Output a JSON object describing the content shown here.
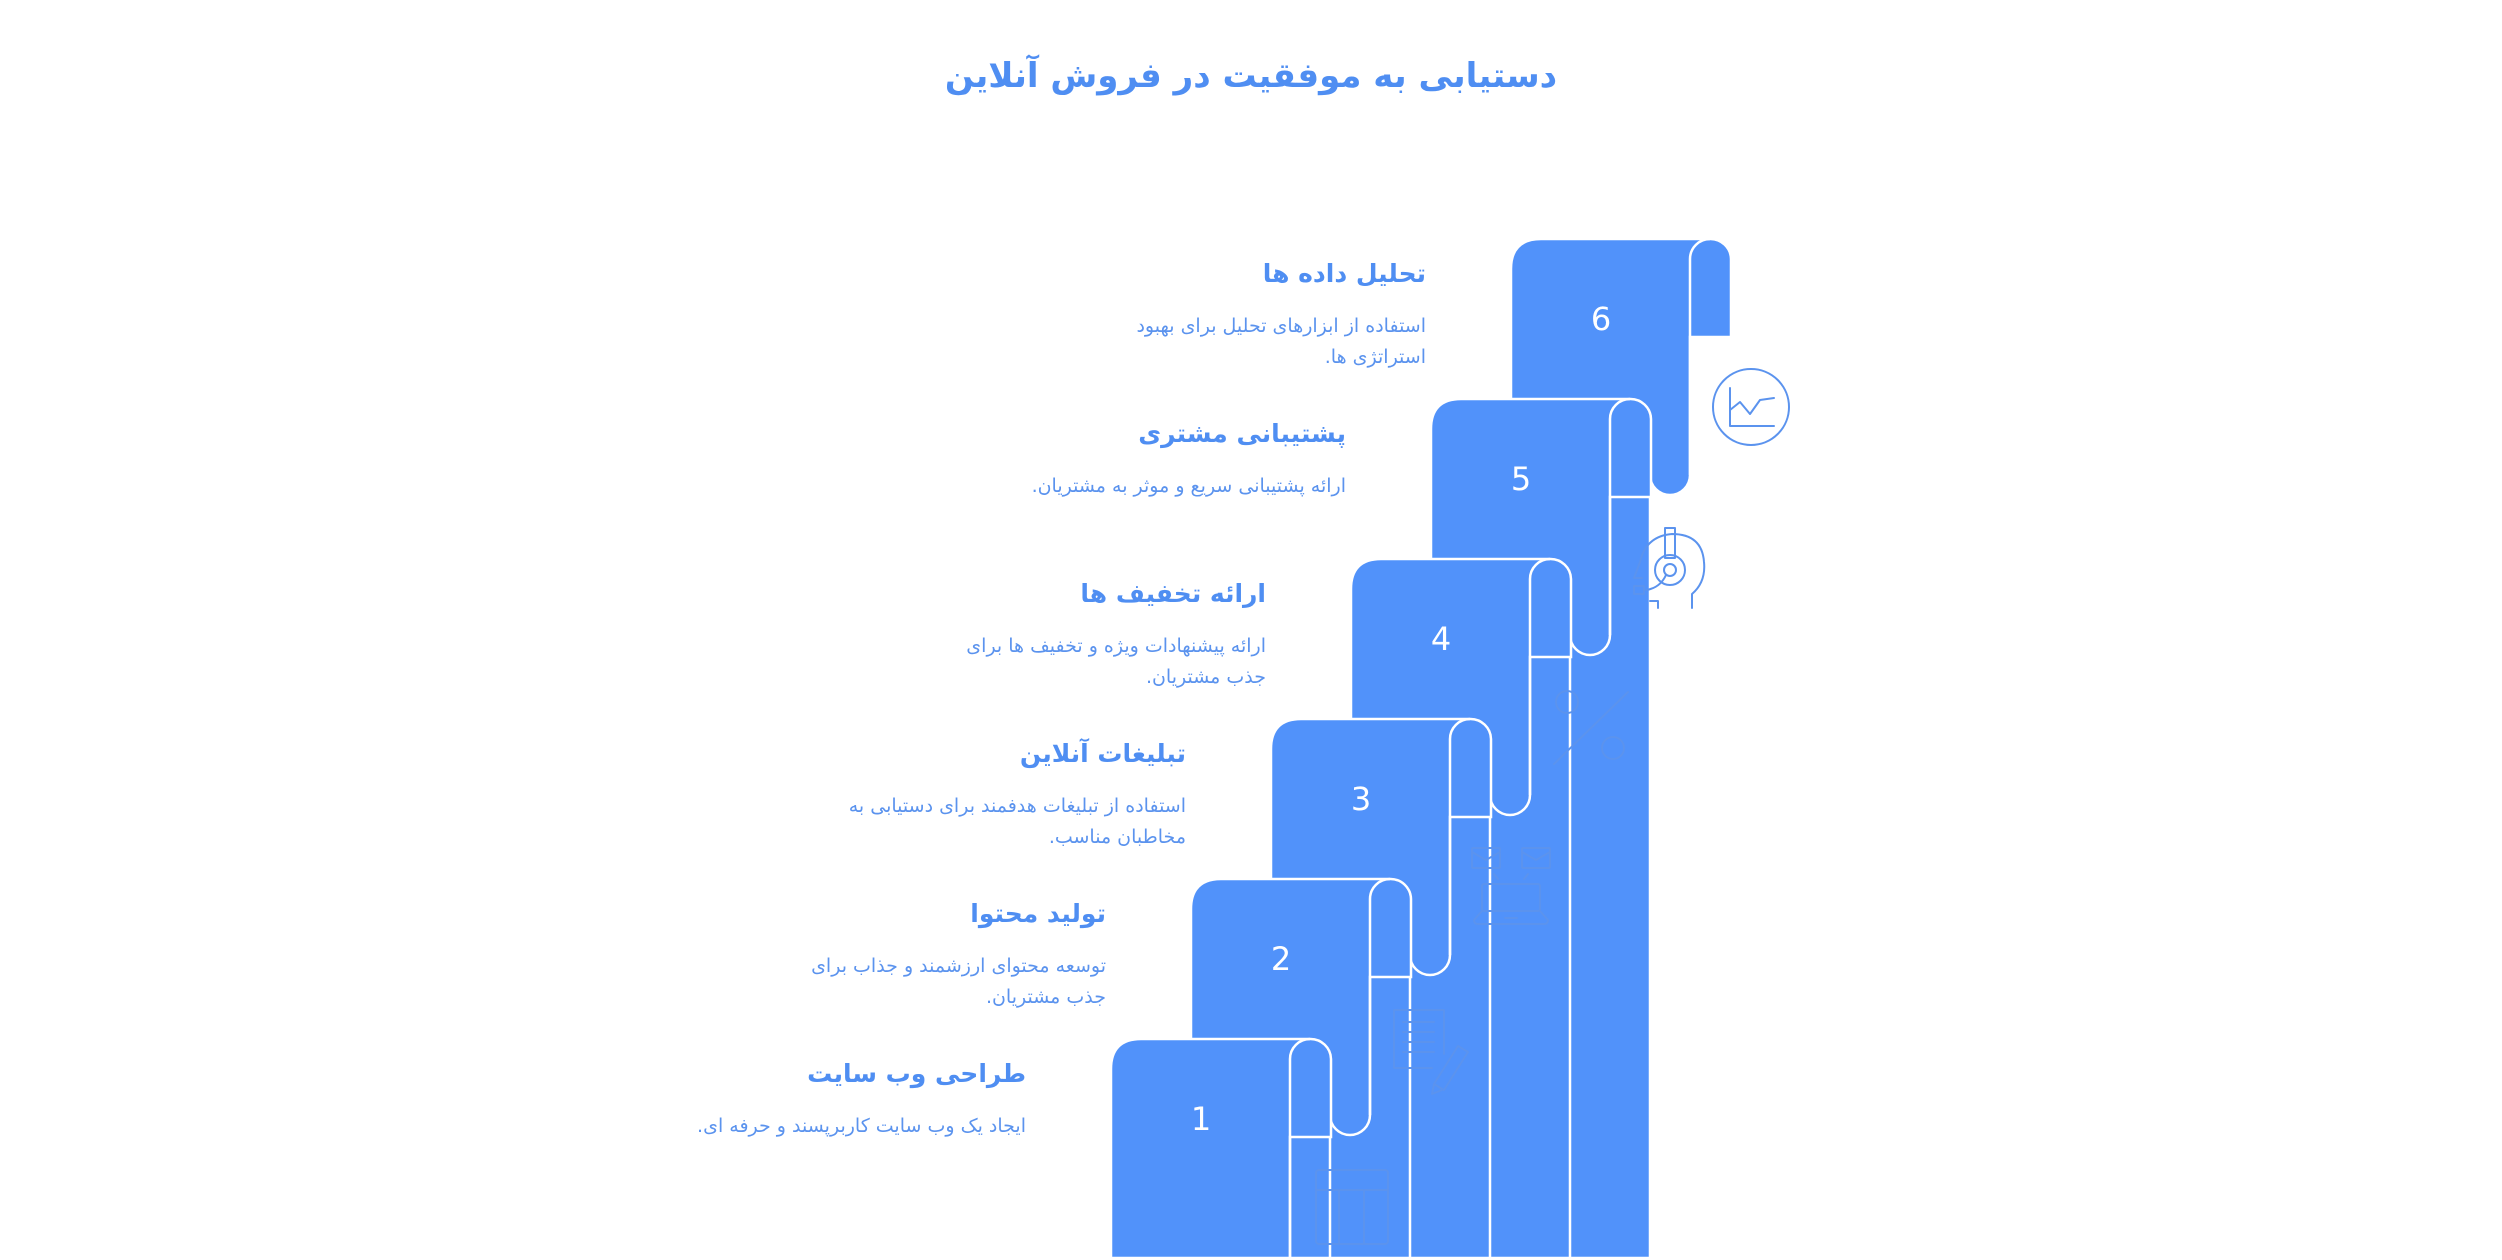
{
  "title": "دستیابی به موفقیت در فروش آنلاین",
  "colors": {
    "step_fill": "#5192fa",
    "text": "#4f8ef2",
    "icon": "#5b93ee"
  },
  "steps": [
    {
      "number": "1",
      "title": "طراحی وب سایت",
      "description": "ایجاد یک وب سایت کاربرپسند و حرفه ای.",
      "icon": "table-layout-icon"
    },
    {
      "number": "2",
      "title": "تولید محتوا",
      "description": "توسعه محتوای ارزشمند و جذاب برای جذب مشتریان.",
      "icon": "document-pencil-icon"
    },
    {
      "number": "3",
      "title": "تبلیغات آنلاین",
      "description": "استفاده از تبلیغات هدفمند برای دستیابی به مخاطبان مناسب.",
      "icon": "laptop-email-icon"
    },
    {
      "number": "4",
      "title": "ارائه تخفیف ها",
      "description": "ارائه پیشنهادات ویژه و تخفیف ها برای جذب مشتریان.",
      "icon": "percent-icon"
    },
    {
      "number": "5",
      "title": "پشتیبانی مشتری",
      "description": "ارائه پشتیبانی سریع و موثر به مشتریان.",
      "icon": "headset-support-icon"
    },
    {
      "number": "6",
      "title": "تحلیل داده ها",
      "description": "استفاده از ابزارهای تحلیل برای بهبود استراتژی ها.",
      "icon": "chart-circle-icon"
    }
  ]
}
